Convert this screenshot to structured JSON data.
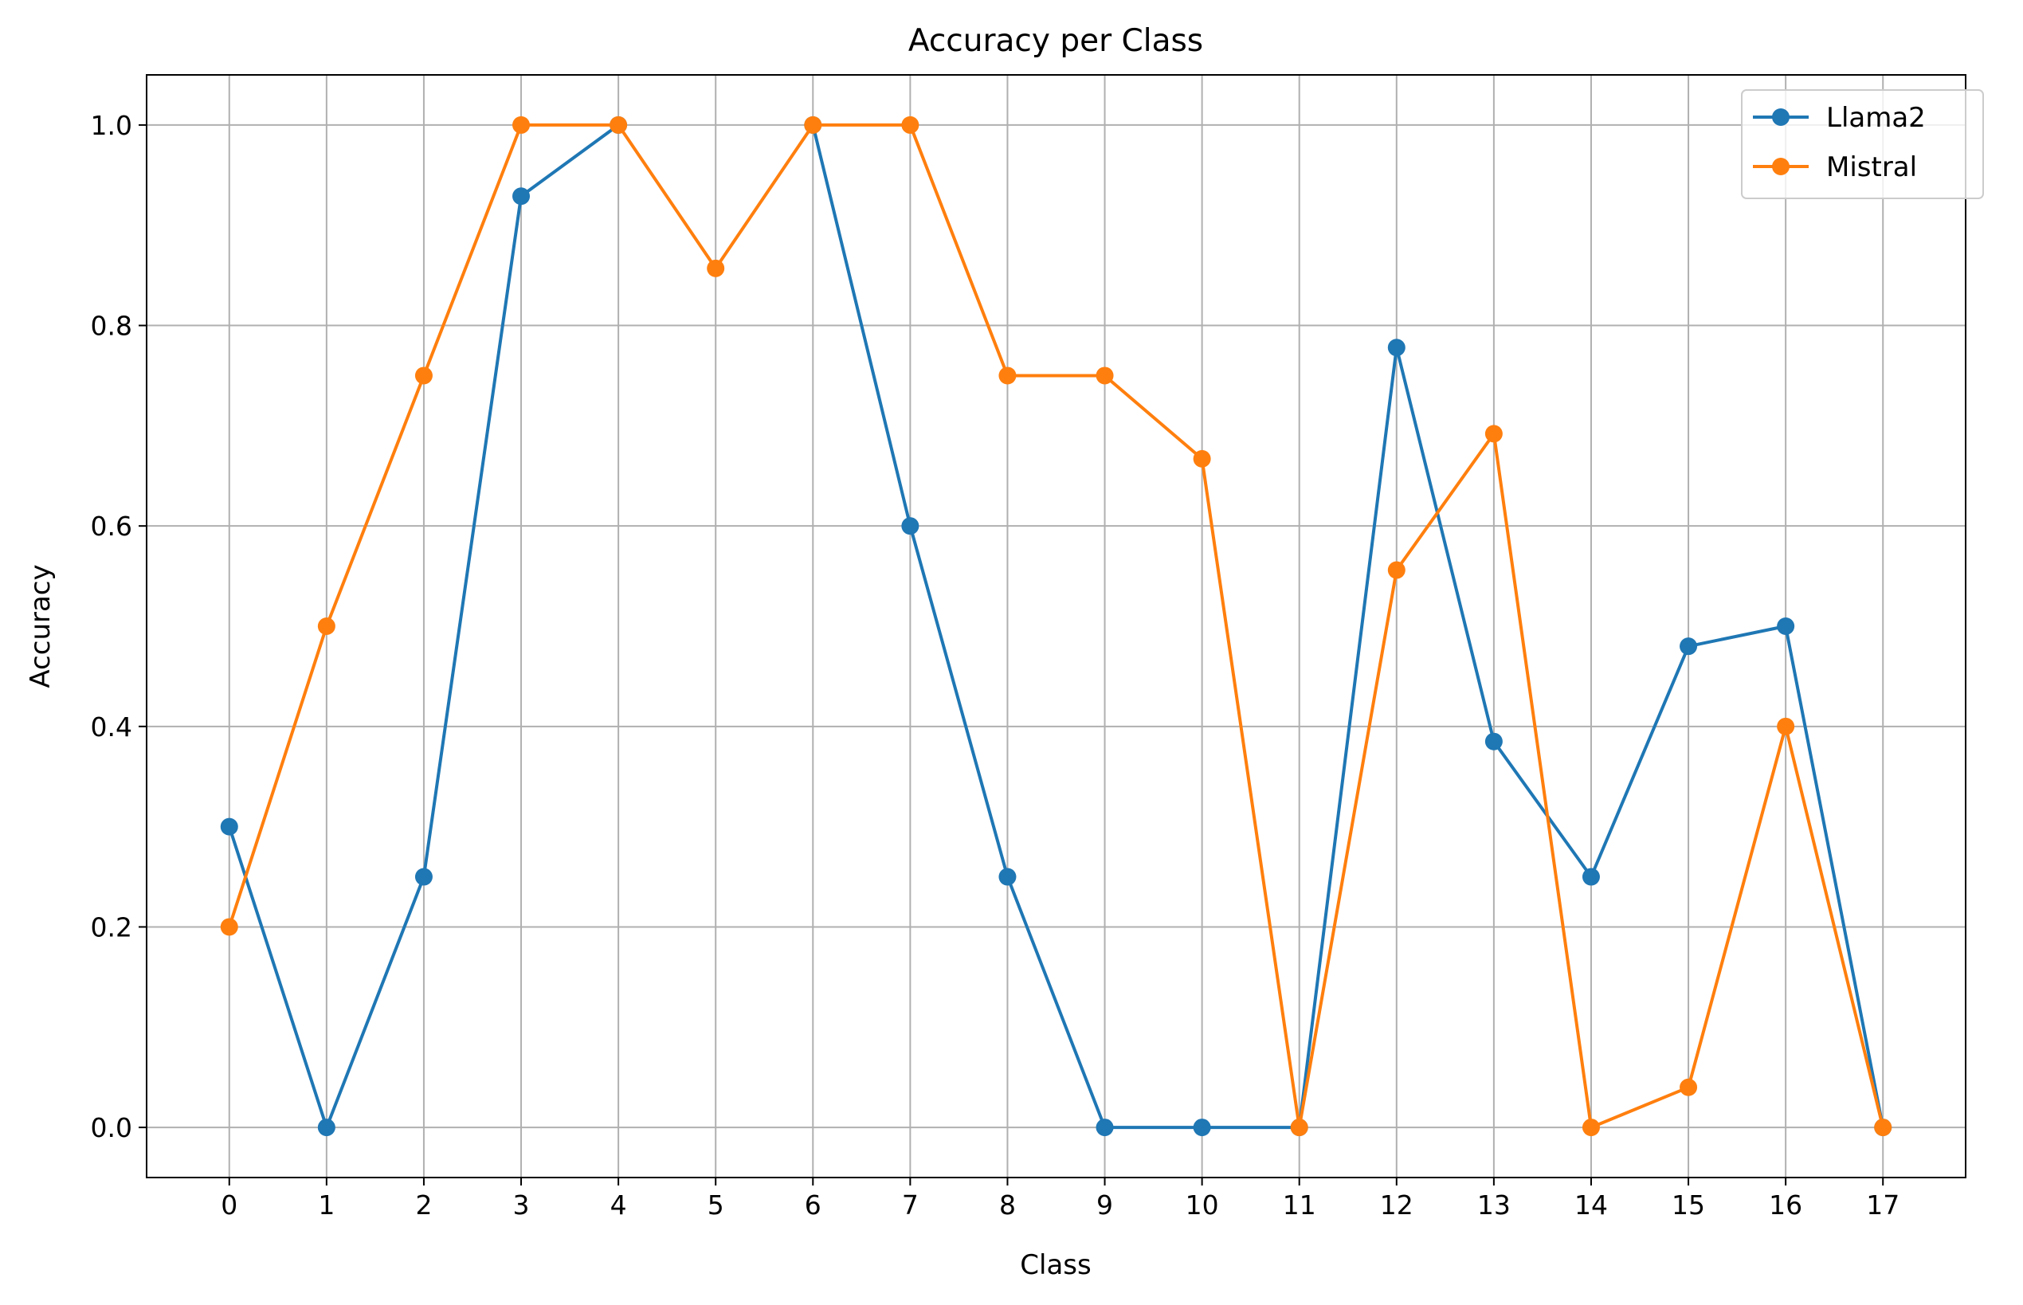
{
  "chart_data": {
    "type": "line",
    "title": "Accuracy per Class",
    "xlabel": "Class",
    "ylabel": "Accuracy",
    "x": [
      0,
      1,
      2,
      3,
      4,
      5,
      6,
      7,
      8,
      9,
      10,
      11,
      12,
      13,
      14,
      15,
      16,
      17
    ],
    "xticks": [
      "0",
      "1",
      "2",
      "3",
      "4",
      "5",
      "6",
      "7",
      "8",
      "9",
      "10",
      "11",
      "12",
      "13",
      "14",
      "15",
      "16",
      "17"
    ],
    "yticks": [
      "0.0",
      "0.2",
      "0.4",
      "0.6",
      "0.8",
      "1.0"
    ],
    "xlim": [
      -0.85,
      17.85
    ],
    "ylim": [
      -0.05,
      1.05
    ],
    "grid": true,
    "legend_position": "top-right",
    "series": [
      {
        "name": "Llama2",
        "color": "#1f77b4",
        "marker": "circle",
        "values": [
          0.3,
          0.0,
          0.25,
          0.929,
          1.0,
          null,
          1.0,
          0.6,
          0.25,
          0.0,
          0.0,
          0.0,
          0.778,
          0.385,
          0.25,
          0.48,
          0.5,
          0.0
        ]
      },
      {
        "name": "Mistral",
        "color": "#ff7f0e",
        "marker": "circle",
        "values": [
          0.2,
          0.5,
          0.75,
          1.0,
          1.0,
          0.857,
          1.0,
          1.0,
          0.75,
          0.75,
          0.667,
          0.0,
          0.556,
          0.692,
          0.0,
          0.04,
          0.4,
          0.0
        ]
      }
    ]
  }
}
